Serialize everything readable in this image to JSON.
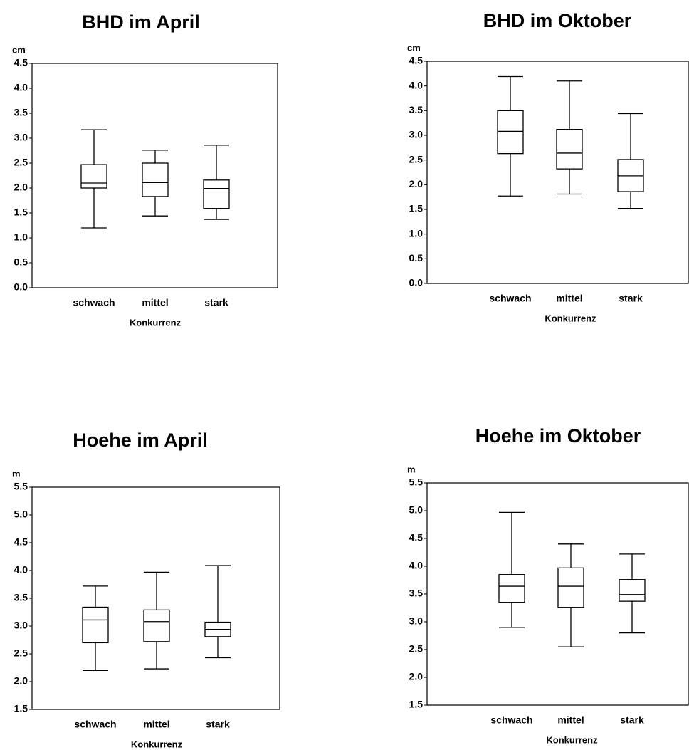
{
  "chart_data": [
    {
      "type": "box",
      "title": "BHD im April",
      "ylabel": "cm",
      "xlabel": "Konkurrenz",
      "categories": [
        "schwach",
        "mittel",
        "stark"
      ],
      "min": [
        1.2,
        1.44,
        1.37
      ],
      "q1": [
        2.0,
        1.83,
        1.59
      ],
      "median": [
        2.1,
        2.11,
        1.99
      ],
      "q3": [
        2.47,
        2.5,
        2.16
      ],
      "max": [
        3.17,
        2.76,
        2.86
      ],
      "ylim": [
        0,
        4.5
      ],
      "yticks": [
        {
          "value": 0,
          "label": "0.0"
        },
        0.5,
        {
          "value": 1,
          "label": "1.0"
        },
        1.5,
        {
          "value": 2,
          "label": "2.0"
        },
        2.5,
        {
          "value": 3,
          "label": "3.0"
        },
        3.5,
        {
          "value": 4,
          "label": "4.0"
        },
        4.5
      ],
      "color": "#000000"
    },
    {
      "type": "box",
      "title": "BHD im Oktober",
      "ylabel": "cm",
      "xlabel": "Konkurrenz",
      "categories": [
        "schwach",
        "mittel",
        "stark"
      ],
      "min": [
        1.77,
        1.81,
        1.52
      ],
      "q1": [
        2.63,
        2.32,
        1.86
      ],
      "median": [
        3.08,
        2.64,
        2.18
      ],
      "q3": [
        3.5,
        3.12,
        2.51
      ],
      "max": [
        4.19,
        4.1,
        3.44
      ],
      "ylim": [
        0,
        4.5
      ],
      "yticks": [
        {
          "value": 0,
          "label": "0.0"
        },
        0.5,
        {
          "value": 1,
          "label": "1.0"
        },
        1.5,
        {
          "value": 2,
          "label": "2.0"
        },
        2.5,
        {
          "value": 3,
          "label": "3.0"
        },
        3.5,
        {
          "value": 4,
          "label": "4.0"
        },
        4.5
      ],
      "color": "#000000"
    },
    {
      "type": "box",
      "title": "Hoehe im April",
      "ylabel": "m",
      "xlabel": "Konkurrenz",
      "categories": [
        "schwach",
        "mittel",
        "stark"
      ],
      "min": [
        2.2,
        2.23,
        2.43
      ],
      "q1": [
        2.7,
        2.72,
        2.81
      ],
      "median": [
        3.11,
        3.08,
        2.94
      ],
      "q3": [
        3.34,
        3.29,
        3.07
      ],
      "max": [
        3.72,
        3.97,
        4.09
      ],
      "ylim": [
        1.5,
        5.5
      ],
      "yticks": [
        1.5,
        {
          "value": 2,
          "label": "2.0"
        },
        2.5,
        {
          "value": 3,
          "label": "3.0"
        },
        3.5,
        {
          "value": 4,
          "label": "4.0"
        },
        4.5,
        {
          "value": 5,
          "label": "5.0"
        },
        5.5
      ],
      "color": "#000000"
    },
    {
      "type": "box",
      "title": "Hoehe im Oktober",
      "ylabel": "m",
      "xlabel": "Konkurrenz",
      "categories": [
        "schwach",
        "mittel",
        "stark"
      ],
      "min": [
        2.9,
        2.55,
        2.8
      ],
      "q1": [
        3.35,
        3.26,
        3.37
      ],
      "median": [
        3.64,
        3.64,
        3.49
      ],
      "q3": [
        3.85,
        3.97,
        3.76
      ],
      "max": [
        4.97,
        4.4,
        4.22
      ],
      "ylim": [
        1.5,
        5.5
      ],
      "yticks": [
        1.5,
        {
          "value": 2,
          "label": "2.0"
        },
        2.5,
        {
          "value": 3,
          "label": "3.0"
        },
        3.5,
        {
          "value": 4,
          "label": "4.0"
        },
        4.5,
        {
          "value": 5,
          "label": "5.0"
        },
        5.5
      ],
      "color": "#000000"
    }
  ]
}
